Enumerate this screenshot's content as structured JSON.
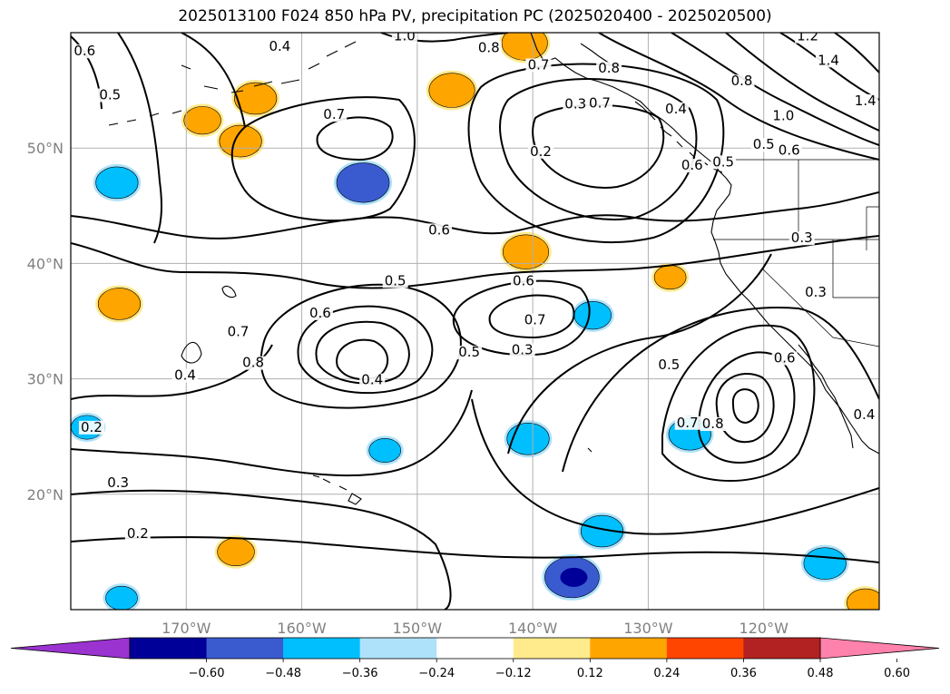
{
  "title": "2025013100 F024 850 hPa PV, precipitation PC (2025020400 - 2025020500)",
  "map": {
    "lon_range": [
      -180,
      -110
    ],
    "lat_range": [
      10,
      60
    ],
    "lon_ticks": [
      {
        "lon": -170,
        "label": "170°W"
      },
      {
        "lon": -160,
        "label": "160°W"
      },
      {
        "lon": -150,
        "label": "150°W"
      },
      {
        "lon": -140,
        "label": "140°W"
      },
      {
        "lon": -130,
        "label": "130°W"
      },
      {
        "lon": -120,
        "label": "120°W"
      }
    ],
    "lat_ticks": [
      {
        "lat": 20,
        "label": "20°N"
      },
      {
        "lat": 30,
        "label": "30°N"
      },
      {
        "lat": 40,
        "label": "40°N"
      },
      {
        "lat": 50,
        "label": "50°N"
      }
    ],
    "grid": true
  },
  "contour_labels": [
    {
      "lon": -151.1,
      "lat": 59.4,
      "text": "1.0"
    },
    {
      "lon": -178.8,
      "lat": 58.1,
      "text": "0.6"
    },
    {
      "lon": -161.9,
      "lat": 58.5,
      "text": "0.4"
    },
    {
      "lon": -143.8,
      "lat": 58.4,
      "text": "0.8"
    },
    {
      "lon": -139.5,
      "lat": 56.9,
      "text": "0.7"
    },
    {
      "lon": -133.4,
      "lat": 56.6,
      "text": "0.8"
    },
    {
      "lon": -176.6,
      "lat": 54.3,
      "text": "0.5"
    },
    {
      "lon": -157.2,
      "lat": 52.6,
      "text": "0.7"
    },
    {
      "lon": -136.3,
      "lat": 53.5,
      "text": "0.3"
    },
    {
      "lon": -134.2,
      "lat": 53.6,
      "text": "0.7"
    },
    {
      "lon": -139.3,
      "lat": 49.4,
      "text": "0.2"
    },
    {
      "lon": -127.6,
      "lat": 53.1,
      "text": "0.4"
    },
    {
      "lon": -126.2,
      "lat": 48.2,
      "text": "0.6"
    },
    {
      "lon": -123.5,
      "lat": 48.5,
      "text": "0.5"
    },
    {
      "lon": -120.0,
      "lat": 50.0,
      "text": "0.5"
    },
    {
      "lon": -117.8,
      "lat": 49.5,
      "text": "0.6"
    },
    {
      "lon": -118.3,
      "lat": 52.5,
      "text": "1.0"
    },
    {
      "lon": -121.9,
      "lat": 55.5,
      "text": "0.8"
    },
    {
      "lon": -114.4,
      "lat": 57.3,
      "text": "1.4"
    },
    {
      "lon": -111.2,
      "lat": 53.8,
      "text": "1.4"
    },
    {
      "lon": -116.2,
      "lat": 59.4,
      "text": "1.2"
    },
    {
      "lon": -148.1,
      "lat": 42.6,
      "text": "0.6"
    },
    {
      "lon": -151.9,
      "lat": 38.2,
      "text": "0.5"
    },
    {
      "lon": -140.8,
      "lat": 38.2,
      "text": "0.6"
    },
    {
      "lon": -158.4,
      "lat": 35.4,
      "text": "0.6"
    },
    {
      "lon": -139.8,
      "lat": 34.8,
      "text": "0.7"
    },
    {
      "lon": -165.5,
      "lat": 33.8,
      "text": "0.7"
    },
    {
      "lon": -164.2,
      "lat": 31.1,
      "text": "0.8"
    },
    {
      "lon": -145.5,
      "lat": 32.0,
      "text": "0.5"
    },
    {
      "lon": -140.9,
      "lat": 32.2,
      "text": "0.3"
    },
    {
      "lon": -170.1,
      "lat": 30.0,
      "text": "0.4"
    },
    {
      "lon": -153.9,
      "lat": 29.6,
      "text": "0.4"
    },
    {
      "lon": -128.2,
      "lat": 30.9,
      "text": "0.5"
    },
    {
      "lon": -118.2,
      "lat": 31.5,
      "text": "0.6"
    },
    {
      "lon": -115.5,
      "lat": 37.2,
      "text": "0.3"
    },
    {
      "lon": -116.7,
      "lat": 41.9,
      "text": "0.3"
    },
    {
      "lon": -111.3,
      "lat": 26.6,
      "text": "0.4"
    },
    {
      "lon": -124.4,
      "lat": 25.8,
      "text": "0.8"
    },
    {
      "lon": -126.6,
      "lat": 25.9,
      "text": "0.7"
    },
    {
      "lon": -178.2,
      "lat": 25.5,
      "text": "0.2"
    },
    {
      "lon": -175.9,
      "lat": 20.7,
      "text": "0.3"
    },
    {
      "lon": -174.2,
      "lat": 16.3,
      "text": "0.2"
    }
  ],
  "precip_anomalies": [
    {
      "lon": -147.0,
      "lat": 55.0,
      "level": 0.4
    },
    {
      "lon": -140.6,
      "lat": 41.0,
      "level": 0.4
    },
    {
      "lon": -140.7,
      "lat": 59.1,
      "level": 0.4
    },
    {
      "lon": -164.0,
      "lat": 54.3,
      "level": 0.36
    },
    {
      "lon": -165.3,
      "lat": 50.6,
      "level": 0.36
    },
    {
      "lon": -168.6,
      "lat": 52.4,
      "level": 0.3
    },
    {
      "lon": -175.8,
      "lat": 36.5,
      "level": 0.36
    },
    {
      "lon": -165.7,
      "lat": 15.0,
      "level": 0.3
    },
    {
      "lon": -111.2,
      "lat": 10.6,
      "level": 0.3
    },
    {
      "lon": -128.1,
      "lat": 38.8,
      "level": 0.24
    },
    {
      "lon": -154.7,
      "lat": 47.0,
      "level": -0.48
    },
    {
      "lon": -176.0,
      "lat": 47.0,
      "level": -0.36
    },
    {
      "lon": -136.6,
      "lat": 12.8,
      "level": -0.5
    },
    {
      "lon": -134.0,
      "lat": 16.8,
      "level": -0.36
    },
    {
      "lon": -140.4,
      "lat": 24.8,
      "level": -0.36
    },
    {
      "lon": -126.4,
      "lat": 25.2,
      "level": -0.36
    },
    {
      "lon": -114.7,
      "lat": 14.0,
      "level": -0.36
    },
    {
      "lon": -134.8,
      "lat": 35.5,
      "level": -0.3
    },
    {
      "lon": -178.6,
      "lat": 25.8,
      "level": -0.24
    },
    {
      "lon": -175.6,
      "lat": 11.0,
      "level": -0.24
    },
    {
      "lon": -152.8,
      "lat": 23.8,
      "level": -0.24
    }
  ],
  "colorbar": {
    "colors": [
      "#9a33d0",
      "#000098",
      "#3a5bd0",
      "#00bfff",
      "#aee2fa",
      "#ffffff",
      "#ffea8c",
      "#ffa500",
      "#ff4500",
      "#b22222",
      "#ff82ac"
    ],
    "tick_labels": [
      "−0.60",
      "−0.48",
      "−0.36",
      "−0.24",
      "−0.12",
      "0.12",
      "0.24",
      "0.36",
      "0.48",
      "0.60"
    ],
    "extend": "both"
  }
}
